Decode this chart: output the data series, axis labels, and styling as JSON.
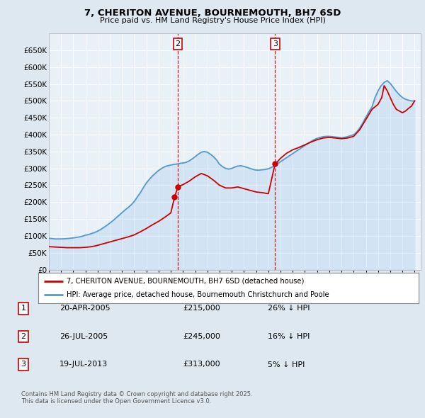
{
  "title": "7, CHERITON AVENUE, BOURNEMOUTH, BH7 6SD",
  "subtitle": "Price paid vs. HM Land Registry's House Price Index (HPI)",
  "legend_line1": "7, CHERITON AVENUE, BOURNEMOUTH, BH7 6SD (detached house)",
  "legend_line2": "HPI: Average price, detached house, Bournemouth Christchurch and Poole",
  "footer_line1": "Contains HM Land Registry data © Crown copyright and database right 2025.",
  "footer_line2": "This data is licensed under the Open Government Licence v3.0.",
  "sale_color": "#cc0000",
  "hpi_color": "#5599cc",
  "hpi_fill_color": "#aaccee",
  "background_color": "#dde8f0",
  "plot_bg_color": "#e8f0f8",
  "grid_color": "#ffffff",
  "vline_color": "#cc0000",
  "annotation_box_color": "#cc0000",
  "ylim": [
    0,
    700000
  ],
  "yticks": [
    0,
    50000,
    100000,
    150000,
    200000,
    250000,
    300000,
    350000,
    400000,
    450000,
    500000,
    550000,
    600000,
    650000
  ],
  "xlim_start": 1995,
  "xlim_end": 2025.5,
  "vline2_x": 2005.58,
  "vline3_x": 2013.55,
  "sale1_x": 2005.31,
  "sale1_y": 215000,
  "sale2_x": 2005.58,
  "sale2_y": 245000,
  "sale3_x": 2013.55,
  "sale3_y": 313000,
  "hpi_years": [
    1995.0,
    1995.25,
    1995.5,
    1995.75,
    1996.0,
    1996.25,
    1996.5,
    1996.75,
    1997.0,
    1997.25,
    1997.5,
    1997.75,
    1998.0,
    1998.25,
    1998.5,
    1998.75,
    1999.0,
    1999.25,
    1999.5,
    1999.75,
    2000.0,
    2000.25,
    2000.5,
    2000.75,
    2001.0,
    2001.25,
    2001.5,
    2001.75,
    2002.0,
    2002.25,
    2002.5,
    2002.75,
    2003.0,
    2003.25,
    2003.5,
    2003.75,
    2004.0,
    2004.25,
    2004.5,
    2004.75,
    2005.0,
    2005.25,
    2005.5,
    2005.75,
    2006.0,
    2006.25,
    2006.5,
    2006.75,
    2007.0,
    2007.25,
    2007.5,
    2007.75,
    2008.0,
    2008.25,
    2008.5,
    2008.75,
    2009.0,
    2009.25,
    2009.5,
    2009.75,
    2010.0,
    2010.25,
    2010.5,
    2010.75,
    2011.0,
    2011.25,
    2011.5,
    2011.75,
    2012.0,
    2012.25,
    2012.5,
    2012.75,
    2013.0,
    2013.25,
    2013.5,
    2013.75,
    2014.0,
    2014.25,
    2014.5,
    2014.75,
    2015.0,
    2015.25,
    2015.5,
    2015.75,
    2016.0,
    2016.25,
    2016.5,
    2016.75,
    2017.0,
    2017.25,
    2017.5,
    2017.75,
    2018.0,
    2018.25,
    2018.5,
    2018.75,
    2019.0,
    2019.25,
    2019.5,
    2019.75,
    2020.0,
    2020.25,
    2020.5,
    2020.75,
    2021.0,
    2021.25,
    2021.5,
    2021.75,
    2022.0,
    2022.25,
    2022.5,
    2022.75,
    2023.0,
    2023.25,
    2023.5,
    2023.75,
    2024.0,
    2024.25,
    2024.5,
    2024.75,
    2025.0
  ],
  "hpi_values": [
    93000,
    92000,
    91000,
    91000,
    91000,
    91500,
    92000,
    93000,
    94000,
    95500,
    97000,
    99000,
    102000,
    104000,
    107000,
    110000,
    114000,
    119000,
    125000,
    131000,
    138000,
    145000,
    153000,
    161000,
    169000,
    177000,
    184000,
    192000,
    202000,
    215000,
    228000,
    243000,
    257000,
    268000,
    278000,
    286000,
    294000,
    300000,
    305000,
    308000,
    310000,
    312000,
    313000,
    315000,
    316000,
    318000,
    322000,
    328000,
    335000,
    342000,
    348000,
    350000,
    348000,
    342000,
    335000,
    325000,
    312000,
    305000,
    300000,
    298000,
    300000,
    304000,
    307000,
    308000,
    306000,
    303000,
    300000,
    297000,
    295000,
    295000,
    296000,
    297000,
    299000,
    303000,
    308000,
    314000,
    320000,
    326000,
    332000,
    338000,
    344000,
    350000,
    356000,
    362000,
    368000,
    374000,
    380000,
    385000,
    389000,
    392000,
    394000,
    395000,
    395000,
    394000,
    393000,
    392000,
    391000,
    392000,
    394000,
    397000,
    400000,
    408000,
    420000,
    435000,
    452000,
    468000,
    482000,
    510000,
    530000,
    545000,
    555000,
    560000,
    552000,
    540000,
    528000,
    518000,
    510000,
    505000,
    502000,
    500000,
    500000
  ],
  "sale_years": [
    1995.0,
    1995.5,
    1996.0,
    1996.5,
    1997.0,
    1997.5,
    1998.0,
    1998.5,
    1999.0,
    1999.5,
    2000.0,
    2000.5,
    2001.0,
    2001.5,
    2002.0,
    2002.5,
    2003.0,
    2003.5,
    2004.0,
    2004.5,
    2005.0,
    2005.31,
    2005.58,
    2005.75,
    2006.0,
    2006.5,
    2007.0,
    2007.5,
    2008.0,
    2008.5,
    2009.0,
    2009.5,
    2010.0,
    2010.5,
    2011.0,
    2011.5,
    2012.0,
    2012.5,
    2013.0,
    2013.55,
    2013.75,
    2014.0,
    2014.5,
    2015.0,
    2015.5,
    2016.0,
    2016.5,
    2017.0,
    2017.5,
    2018.0,
    2018.5,
    2019.0,
    2019.5,
    2020.0,
    2020.5,
    2021.0,
    2021.5,
    2022.0,
    2022.3,
    2022.5,
    2022.75,
    2023.0,
    2023.25,
    2023.5,
    2023.75,
    2024.0,
    2024.25,
    2024.5,
    2024.75,
    2025.0
  ],
  "sale_values": [
    68000,
    67000,
    66000,
    65000,
    65000,
    65000,
    66000,
    68000,
    72000,
    77000,
    82000,
    87000,
    92000,
    97000,
    103000,
    112000,
    122000,
    133000,
    143000,
    155000,
    168000,
    215000,
    245000,
    248000,
    252000,
    262000,
    275000,
    285000,
    278000,
    265000,
    250000,
    242000,
    242000,
    245000,
    240000,
    235000,
    230000,
    228000,
    225000,
    313000,
    320000,
    330000,
    345000,
    355000,
    362000,
    370000,
    378000,
    385000,
    390000,
    392000,
    390000,
    388000,
    390000,
    395000,
    415000,
    445000,
    475000,
    490000,
    510000,
    545000,
    530000,
    510000,
    490000,
    475000,
    470000,
    465000,
    470000,
    478000,
    485000,
    500000
  ],
  "table_rows": [
    {
      "num": "1",
      "date": "20-APR-2005",
      "price": "£215,000",
      "note": "26% ↓ HPI"
    },
    {
      "num": "2",
      "date": "26-JUL-2005",
      "price": "£245,000",
      "note": "16% ↓ HPI"
    },
    {
      "num": "3",
      "date": "19-JUL-2013",
      "price": "£313,000",
      "note": "5% ↓ HPI"
    }
  ]
}
